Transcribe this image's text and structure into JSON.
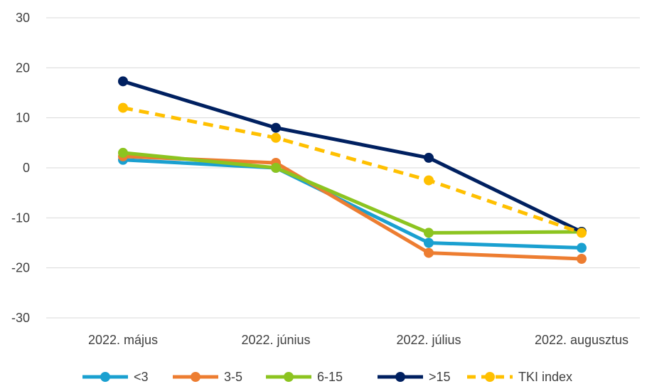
{
  "chart_data": {
    "type": "line",
    "title": "",
    "xlabel": "",
    "ylabel": "",
    "categories": [
      "2022. május",
      "2022. június",
      "2022. július",
      "2022. augusztus"
    ],
    "ylim": [
      -30,
      30
    ],
    "yticks": [
      -30,
      -20,
      -10,
      0,
      10,
      20,
      30
    ],
    "grid": true,
    "legend_position": "bottom",
    "series": [
      {
        "name": "<3",
        "values": [
          1.6,
          0,
          -15,
          -16
        ],
        "color": "#1aa0d0",
        "dashed": false
      },
      {
        "name": "3-5",
        "values": [
          2.3,
          1,
          -17,
          -18.2
        ],
        "color": "#ed7d31",
        "dashed": false
      },
      {
        "name": "6-15",
        "values": [
          3,
          0,
          -13,
          -12.8
        ],
        "color": "#8cc420",
        "dashed": false
      },
      {
        "name": ">15",
        "values": [
          17.3,
          8,
          2,
          -12.8
        ],
        "color": "#002060",
        "dashed": false
      },
      {
        "name": "TKI index",
        "values": [
          12,
          6,
          -2.5,
          -13
        ],
        "color": "#ffc000",
        "dashed": true
      }
    ]
  }
}
